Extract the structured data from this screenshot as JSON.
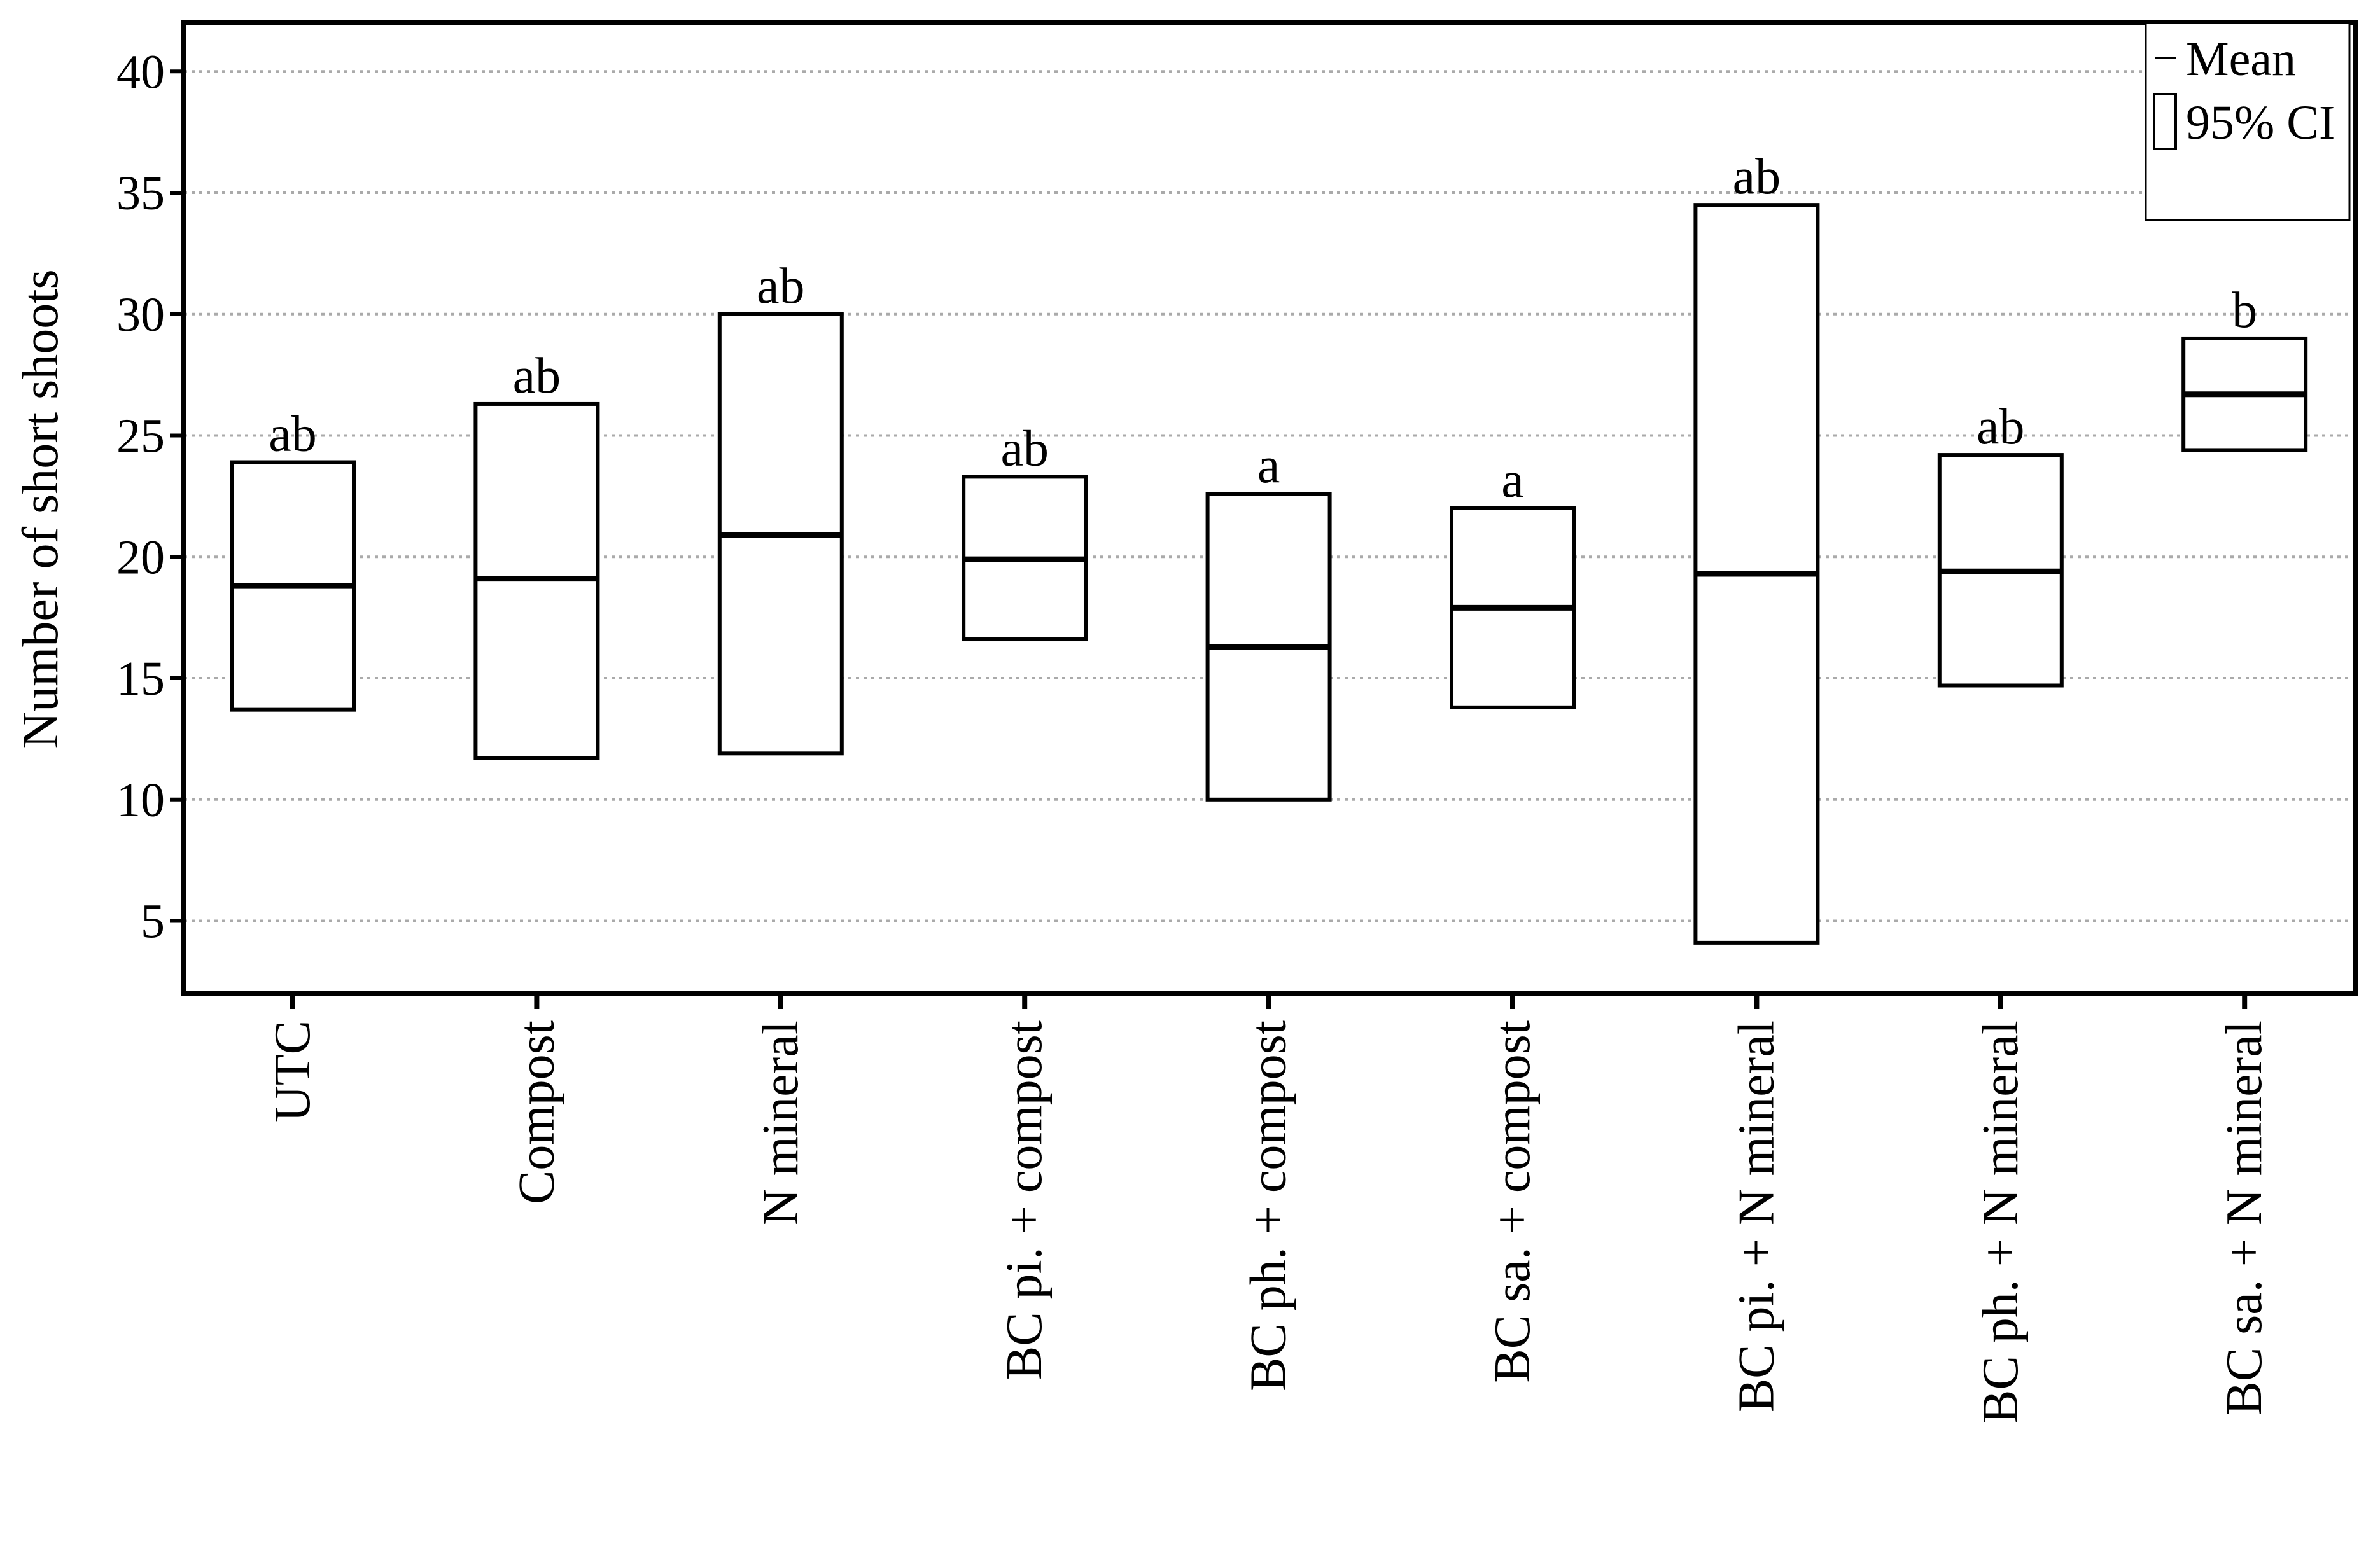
{
  "chart_data": {
    "type": "box",
    "title": "",
    "xlabel": "",
    "ylabel": "Number of short shoots",
    "ylim": [
      2,
      42
    ],
    "yticks": [
      5,
      10,
      15,
      20,
      25,
      30,
      35,
      40
    ],
    "grid": "horizontal dotted",
    "legend": {
      "position": "top-right",
      "items": [
        "Mean",
        "95% CI"
      ]
    },
    "categories": [
      "UTC",
      "Compost",
      "N mineral",
      "BC pi. + compost",
      "BC ph. + compost",
      "BC sa. + compost",
      "BC pi. + N mineral",
      "BC ph. + N mineral",
      "BC sa. + N mineral"
    ],
    "mean": [
      18.8,
      19.1,
      20.9,
      19.9,
      16.3,
      17.9,
      19.3,
      19.4,
      26.7
    ],
    "ci_lower": [
      13.7,
      11.7,
      11.9,
      16.6,
      10.0,
      13.8,
      4.1,
      14.7,
      24.4
    ],
    "ci_upper": [
      23.9,
      26.3,
      30.0,
      23.3,
      22.6,
      22.0,
      34.5,
      24.2,
      29.0
    ],
    "group_letters": [
      "ab",
      "ab",
      "ab",
      "ab",
      "a",
      "a",
      "ab",
      "ab",
      "b"
    ]
  }
}
